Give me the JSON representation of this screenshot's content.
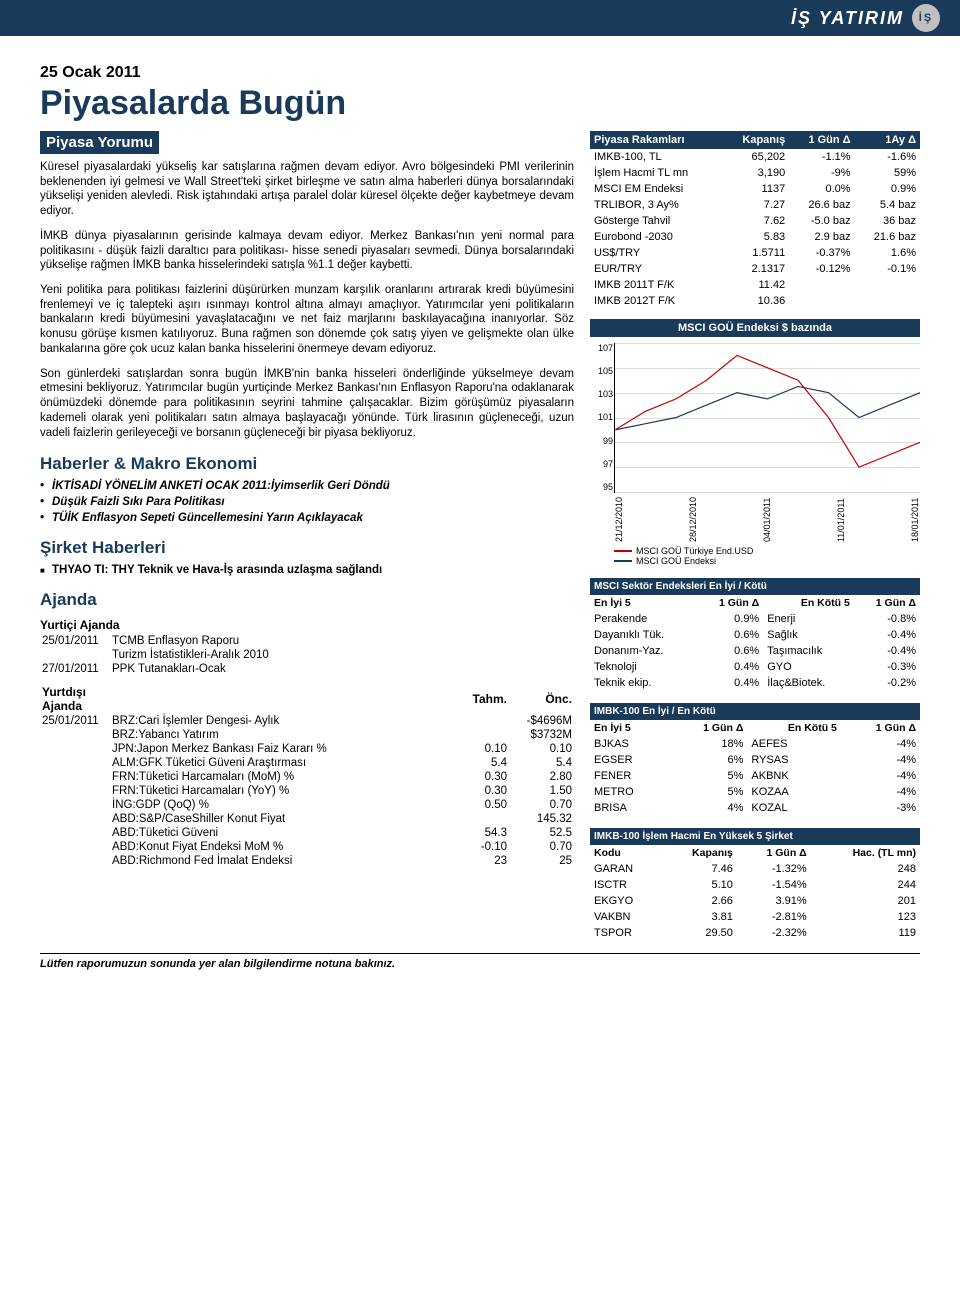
{
  "brand": {
    "name": "İŞ YATIRIM"
  },
  "header": {
    "date": "25 Ocak 2011",
    "title": "Piyasalarda Bugün",
    "subtitle": "Piyasa Yorumu"
  },
  "commentary": {
    "p1": "Küresel piyasalardaki yükseliş kar satışlarına rağmen devam ediyor. Avro bölgesindeki PMI verilerinin beklenenden iyi gelmesi ve Wall Street'teki şirket birleşme ve satın alma haberleri dünya borsalarındaki yükselişi yeniden alevledi. Risk iştahındaki artışa paralel dolar küresel ölçekte değer kaybetmeye devam ediyor.",
    "p2": "İMKB dünya piyasalarının gerisinde kalmaya devam ediyor. Merkez Bankası'nın yeni normal para politikasını - düşük faizli daraltıcı para politikası- hisse senedi piyasaları sevmedi. Dünya borsalarındaki yükselişe rağmen İMKB banka hisselerindeki satışla %1.1 değer kaybetti.",
    "p3": "Yeni politika para politikası faizlerini düşürürken munzam karşılık oranlarını artırarak kredi büyümesini frenlemeyi ve iç talepteki aşırı ısınmayı kontrol altına almayı amaçlıyor. Yatırımcılar yeni politikaların bankaların kredi büyümesini yavaşlatacağını ve net faiz marjlarını baskılayacağına inanıyorlar. Söz konusu görüşe kısmen katılıyoruz. Buna rağmen son dönemde çok satış yiyen ve gelişmekte olan ülke bankalarına göre çok ucuz kalan banka hisselerini önermeye devam ediyoruz.",
    "p4": "Son günlerdeki satışlardan sonra bugün İMKB'nin banka hisseleri önderliğinde yükselmeye devam etmesini bekliyoruz. Yatırımcılar bugün yurtiçinde Merkez Bankası'nın Enflasyon Raporu'na odaklanarak önümüzdeki dönemde para politikasının seyrini tahmine çalışacaklar. Bizim görüşümüz piyasaların kademeli olarak yeni politikaları satın almaya başlayacağı yönünde. Türk lirasının güçleneceği, uzun vadeli faizlerin gerileyeceği ve borsanın güçleneceği bir piyasa bekliyoruz."
  },
  "news": {
    "heading": "Haberler & Makro Ekonomi",
    "items": [
      "İKTİSADİ YÖNELİM ANKETİ OCAK 2011:İyimserlik Geri Döndü",
      "Düşük Faizli Sıkı Para Politikası",
      "TÜİK Enflasyon Sepeti Güncellemesini Yarın Açıklayacak"
    ]
  },
  "company": {
    "heading": "Şirket Haberleri",
    "items": [
      "THYAO TI:   THY Teknik ve Hava-İş arasında uzlaşma sağlandı"
    ]
  },
  "agenda": {
    "heading": "Ajanda",
    "domestic_heading": "Yurtiçi Ajanda",
    "domestic_rows": [
      {
        "date": "25/01/2011",
        "text": "TCMB Enflasyon Raporu"
      },
      {
        "date": "",
        "text": "Turizm İstatistikleri-Aralık 2010"
      },
      {
        "date": "27/01/2011",
        "text": "PPK Tutanakları-Ocak"
      }
    ],
    "foreign_heading": "Yurtdışı Ajanda",
    "foreign_cols": {
      "est": "Tahm.",
      "prev": "Önc."
    },
    "foreign_rows": [
      {
        "date": "25/01/2011",
        "text": "BRZ:Cari İşlemler Dengesi- Aylık",
        "est": "",
        "prev": "-$4696M"
      },
      {
        "date": "",
        "text": "BRZ:Yabancı Yatırım",
        "est": "",
        "prev": "$3732M"
      },
      {
        "date": "",
        "text": "JPN:Japon Merkez Bankası Faiz Kararı %",
        "est": "0.10",
        "prev": "0.10"
      },
      {
        "date": "",
        "text": "ALM:GFK Tüketici Güveni Araştırması",
        "est": "5.4",
        "prev": "5.4"
      },
      {
        "date": "",
        "text": "FRN:Tüketici Harcamaları (MoM) %",
        "est": "0.30",
        "prev": "2.80"
      },
      {
        "date": "",
        "text": "FRN:Tüketici Harcamaları (YoY) %",
        "est": "0.30",
        "prev": "1.50"
      },
      {
        "date": "",
        "text": "İNG:GDP      (QoQ) %",
        "est": "0.50",
        "prev": "0.70"
      },
      {
        "date": "",
        "text": "ABD:S&P/CaseShiller Konut Fiyat",
        "est": "",
        "prev": "145.32"
      },
      {
        "date": "",
        "text": "ABD:Tüketici Güveni",
        "est": "54.3",
        "prev": "52.5"
      },
      {
        "date": "",
        "text": "ABD:Konut Fiyat Endeksi MoM %",
        "est": "-0.10",
        "prev": "0.70"
      },
      {
        "date": "",
        "text": "ABD:Richmond Fed İmalat Endeksi",
        "est": "23",
        "prev": "25"
      }
    ]
  },
  "market_table": {
    "headers": [
      "Piyasa Rakamları",
      "Kapanış",
      "1 Gün Δ",
      "1Ay Δ"
    ],
    "rows": [
      [
        "IMKB-100, TL",
        "65,202",
        "-1.1%",
        "-1.6%"
      ],
      [
        "İşlem Hacmi TL mn",
        "3,190",
        "-9%",
        "59%"
      ],
      [
        "MSCI EM Endeksi",
        "1137",
        "0.0%",
        "0.9%"
      ],
      [
        "TRLIBOR, 3 Ay%",
        "7.27",
        "26.6 baz",
        "5.4 baz"
      ],
      [
        "Gösterge Tahvil",
        "7.62",
        "-5.0 baz",
        "36 baz"
      ],
      [
        "Eurobond -2030",
        "5.83",
        "2.9 baz",
        "21.6 baz"
      ],
      [
        "US$/TRY",
        "1.5711",
        "-0.37%",
        "1.6%"
      ],
      [
        "EUR/TRY",
        "2.1317",
        "-0.12%",
        "-0.1%"
      ],
      [
        "IMKB 2011T F/K",
        "11.42",
        "",
        ""
      ],
      [
        "IMKB 2012T F/K",
        "10.36",
        "",
        ""
      ]
    ]
  },
  "chart": {
    "title": "MSCI GOÜ Endeksi $ bazında",
    "ylabels": [
      "107",
      "105",
      "103",
      "101",
      "99",
      "97",
      "95"
    ],
    "xlabels": [
      "21/12/2010",
      "28/12/2010",
      "04/01/2011",
      "11/01/2011",
      "18/01/2011"
    ],
    "legend": [
      {
        "label": "MSCI GOÜ Türkiye End.USD",
        "color": "#c00000"
      },
      {
        "label": "MSCI GOÜ Endeksi",
        "color": "#1a3a5a"
      }
    ],
    "series": {
      "turkey": {
        "color": "#c00000",
        "points": [
          [
            0,
            100
          ],
          [
            10,
            101.5
          ],
          [
            20,
            102.5
          ],
          [
            30,
            104
          ],
          [
            40,
            106
          ],
          [
            50,
            105
          ],
          [
            60,
            104
          ],
          [
            70,
            101
          ],
          [
            80,
            97
          ],
          [
            90,
            98
          ],
          [
            100,
            99
          ]
        ]
      },
      "em": {
        "color": "#1a3a5a",
        "points": [
          [
            0,
            100
          ],
          [
            10,
            100.5
          ],
          [
            20,
            101
          ],
          [
            30,
            102
          ],
          [
            40,
            103
          ],
          [
            50,
            102.5
          ],
          [
            60,
            103.5
          ],
          [
            70,
            103
          ],
          [
            80,
            101
          ],
          [
            90,
            102
          ],
          [
            100,
            103
          ]
        ]
      }
    },
    "ylim": [
      95,
      107
    ]
  },
  "sector": {
    "title": "MSCI Sektör Endeksleri En İyi / Kötü",
    "subheads": [
      "En İyi 5",
      "1 Gün Δ",
      "En Kötü 5",
      "1 Gün Δ"
    ],
    "rows": [
      [
        "Perakende",
        "0.9%",
        "Enerji",
        "-0.8%"
      ],
      [
        "Dayanıklı Tük.",
        "0.6%",
        "Sağlık",
        "-0.4%"
      ],
      [
        "Donanım-Yaz.",
        "0.6%",
        "Taşımacılık",
        "-0.4%"
      ],
      [
        "Teknoloji",
        "0.4%",
        "GYO",
        "-0.3%"
      ],
      [
        "Teknik ekip.",
        "0.4%",
        "İlaç&Biotek.",
        "-0.2%"
      ]
    ]
  },
  "imkb_bw": {
    "title": "IMBK-100 En İyi / En Kötü",
    "subheads": [
      "En İyi 5",
      "1 Gün Δ",
      "En Kötü 5",
      "1 Gün Δ"
    ],
    "rows": [
      [
        "BJKAS",
        "18%",
        "AEFES",
        "-4%"
      ],
      [
        "EGSER",
        "6%",
        "RYSAS",
        "-4%"
      ],
      [
        "FENER",
        "5%",
        "AKBNK",
        "-4%"
      ],
      [
        "METRO",
        "5%",
        "KOZAA",
        "-4%"
      ],
      [
        "BRISA",
        "4%",
        "KOZAL",
        "-3%"
      ]
    ]
  },
  "volume": {
    "title": "IMKB-100 İşlem Hacmi En Yüksek 5 Şirket",
    "headers": [
      "Kodu",
      "Kapanış",
      "1 Gün Δ",
      "Hac. (TL mn)"
    ],
    "rows": [
      [
        "GARAN",
        "7.46",
        "-1.32%",
        "248"
      ],
      [
        "ISCTR",
        "5.10",
        "-1.54%",
        "244"
      ],
      [
        "EKGYO",
        "2.66",
        "3.91%",
        "201"
      ],
      [
        "VAKBN",
        "3.81",
        "-2.81%",
        "123"
      ],
      [
        "TSPOR",
        "29.50",
        "-2.32%",
        "119"
      ]
    ]
  },
  "footer": "Lütfen raporumuzun sonunda yer alan bilgilendirme notuna bakınız."
}
